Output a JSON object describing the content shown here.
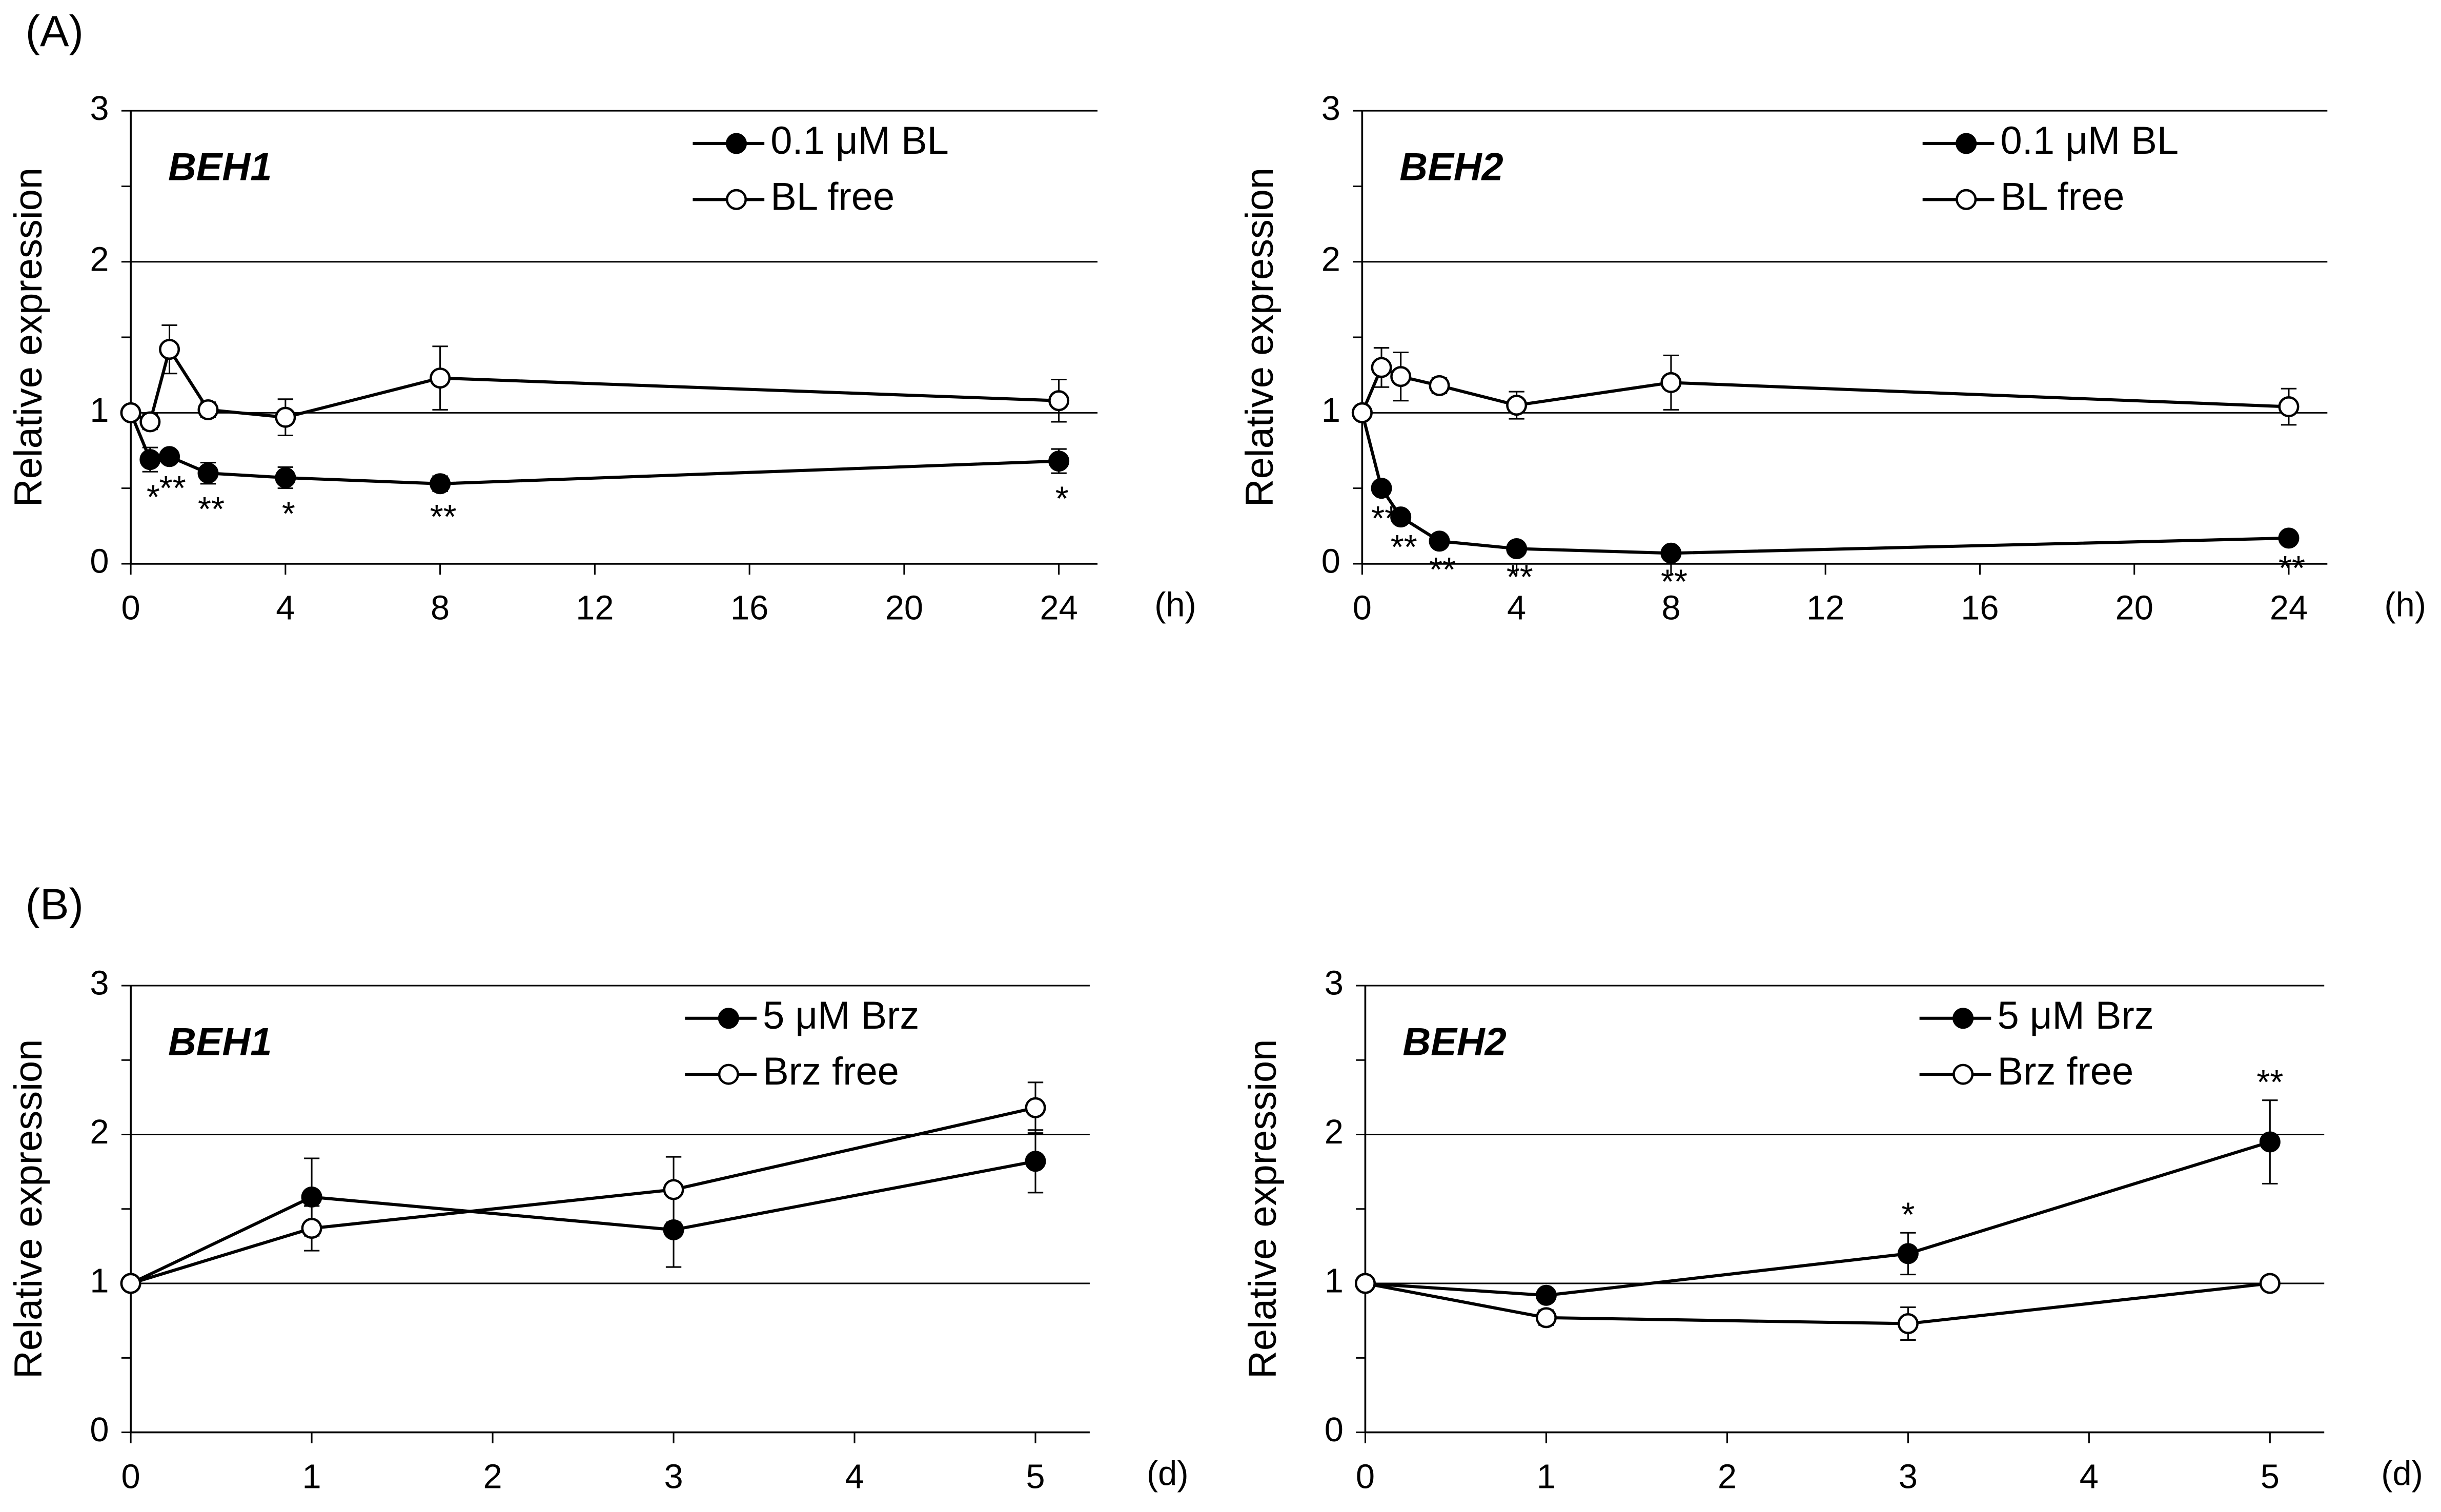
{
  "panels": [
    "(A)",
    "(B)"
  ],
  "chart_data": [
    {
      "type": "line",
      "gene": "BEH1",
      "ylabel": "Relative expression",
      "xlabel": "(h)",
      "x": [
        0,
        0.5,
        1,
        2,
        4,
        8,
        24
      ],
      "xlim": [
        0,
        25
      ],
      "xticks": [
        0,
        4,
        8,
        12,
        16,
        20,
        24
      ],
      "ylim": [
        0,
        3
      ],
      "yticks": [
        0,
        1,
        2,
        3
      ],
      "yminor": [
        0.5,
        1.5,
        2.5
      ],
      "grid": true,
      "legend": "upper right",
      "significance_position": "below",
      "series": [
        {
          "name": "0.1 μM BL",
          "color": "#000000",
          "values": [
            1,
            0.69,
            0.71,
            0.6,
            0.57,
            0.53,
            0.68
          ],
          "errors": [
            0,
            0.08,
            0.04,
            0.07,
            0.07,
            0.05,
            0.08
          ],
          "significance": [
            null,
            "*",
            "**",
            "**",
            "*",
            "**",
            "*"
          ]
        },
        {
          "name": "BL free",
          "color": "#ffffff",
          "values": [
            1,
            0.94,
            1.42,
            1.02,
            0.97,
            1.23,
            1.08
          ],
          "errors": [
            0,
            0.05,
            0.16,
            0.05,
            0.12,
            0.21,
            0.14
          ]
        }
      ]
    },
    {
      "type": "line",
      "gene": "BEH2",
      "ylabel": "Relative expression",
      "xlabel": "(h)",
      "x": [
        0,
        0.5,
        1,
        2,
        4,
        8,
        24
      ],
      "xlim": [
        0,
        25
      ],
      "xticks": [
        0,
        4,
        8,
        12,
        16,
        20,
        24
      ],
      "ylim": [
        0,
        3
      ],
      "yticks": [
        0,
        1,
        2,
        3
      ],
      "yminor": [
        0.5,
        1.5,
        2.5
      ],
      "grid": true,
      "legend": "upper right",
      "significance_position": "below",
      "series": [
        {
          "name": "0.1 μM BL",
          "color": "#000000",
          "values": [
            1,
            0.5,
            0.31,
            0.15,
            0.1,
            0.07,
            0.17
          ],
          "errors": [
            0,
            0.03,
            0.03,
            0.02,
            0.02,
            0.02,
            0.03
          ],
          "significance": [
            null,
            "**",
            "**",
            "**",
            "**",
            "**",
            "**"
          ]
        },
        {
          "name": "BL free",
          "color": "#ffffff",
          "values": [
            1,
            1.3,
            1.24,
            1.18,
            1.05,
            1.2,
            1.04
          ],
          "errors": [
            0,
            0.13,
            0.16,
            0.05,
            0.09,
            0.18,
            0.12
          ]
        }
      ]
    },
    {
      "type": "line",
      "gene": "BEH1",
      "ylabel": "Relative expression",
      "xlabel": "(d)",
      "x": [
        0,
        1,
        3,
        5
      ],
      "xlim": [
        0,
        5.3
      ],
      "xticks": [
        0,
        1,
        2,
        3,
        4,
        5
      ],
      "ylim": [
        0,
        3
      ],
      "yticks": [
        0,
        1,
        2,
        3
      ],
      "yminor": [
        0.5,
        1.5,
        2.5
      ],
      "grid": true,
      "legend": "upper right",
      "significance_position": "above",
      "series": [
        {
          "name": "5 μM Brz",
          "color": "#000000",
          "values": [
            1,
            1.58,
            1.36,
            1.82
          ],
          "errors": [
            0,
            0.26,
            0.25,
            0.21
          ]
        },
        {
          "name": "Brz free",
          "color": "#ffffff",
          "values": [
            1,
            1.37,
            1.63,
            2.18
          ],
          "errors": [
            0,
            0.15,
            0.22,
            0.17
          ]
        }
      ]
    },
    {
      "type": "line",
      "gene": "BEH2",
      "ylabel": "Relative expression",
      "xlabel": "(d)",
      "x": [
        0,
        1,
        3,
        5
      ],
      "xlim": [
        0,
        5.3
      ],
      "xticks": [
        0,
        1,
        2,
        3,
        4,
        5
      ],
      "ylim": [
        0,
        3
      ],
      "yticks": [
        0,
        1,
        2,
        3
      ],
      "yminor": [
        0.5,
        1.5,
        2.5
      ],
      "grid": true,
      "legend": "upper right",
      "significance_position": "above",
      "series": [
        {
          "name": "5 μM Brz",
          "color": "#000000",
          "values": [
            1,
            0.92,
            1.2,
            1.95
          ],
          "errors": [
            0,
            0.03,
            0.14,
            0.28
          ],
          "significance": [
            null,
            null,
            "*",
            "**"
          ]
        },
        {
          "name": "Brz free",
          "color": "#ffffff",
          "values": [
            1,
            0.77,
            0.73,
            1.0
          ],
          "errors": [
            0,
            0.05,
            0.11,
            0.04
          ]
        }
      ]
    }
  ]
}
